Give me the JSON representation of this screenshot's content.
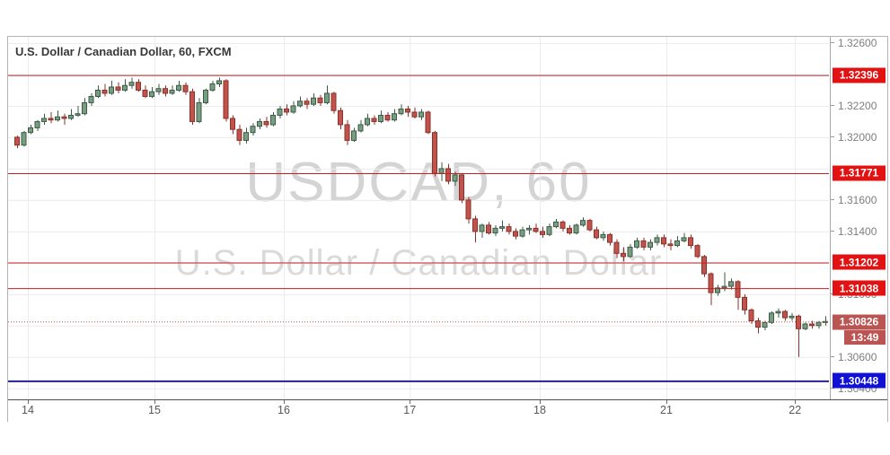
{
  "header": {
    "title": "U.S. Dollar / Canadian Dollar, 60, FXCM"
  },
  "watermark": {
    "line1": "USDCAD, 60",
    "line2": "U.S. Dollar / Canadian Dollar"
  },
  "colors": {
    "up_fill": "#789e82",
    "up_stroke": "#3c5a46",
    "down_fill": "#c0544d",
    "down_stroke": "#8c302a",
    "grid": "#ececec",
    "level_line_red": "#c41e1e",
    "level_badge_red": "#e21212",
    "last_line": "#bb5553",
    "last_badge": "#bb5553",
    "support_line_blue": "#23238c",
    "support_badge_blue": "#1111d6",
    "axis_text": "#7e7e7e",
    "time_text": "#585858"
  },
  "chart_data": {
    "type": "candlestick",
    "title": "U.S. Dollar / Canadian Dollar, 60, FXCM",
    "symbol": "USDCAD",
    "interval": "60",
    "feed": "FXCM",
    "legend_position": "top-left",
    "grid": true,
    "price_axis": {
      "range_top": 1.3264,
      "range_bottom": 1.3033,
      "grid_step": 0.002,
      "grid_prices": [
        1.326,
        1.324,
        1.322,
        1.32,
        1.318,
        1.316,
        1.314,
        1.312,
        1.31,
        1.308,
        1.306,
        1.304
      ],
      "visible_labels": [
        "1.32600",
        "1.32200",
        "1.32000",
        "1.31600",
        "1.31400",
        "1.31000",
        "1.30600",
        "1.30400"
      ],
      "visible_label_values": [
        1.326,
        1.322,
        1.32,
        1.316,
        1.314,
        1.31,
        1.306,
        1.304
      ]
    },
    "time_axis": {
      "ticks": [
        {
          "label": "14",
          "index": 1.6
        },
        {
          "label": "15",
          "index": 20.4
        },
        {
          "label": "16",
          "index": 39.6
        },
        {
          "label": "17",
          "index": 58.3
        },
        {
          "label": "18",
          "index": 77.6
        },
        {
          "label": "21",
          "index": 96.4
        },
        {
          "label": "22",
          "index": 115.5
        }
      ]
    },
    "levels": [
      {
        "value": 1.32396,
        "label": "1.32396",
        "style": "solid-red"
      },
      {
        "value": 1.31771,
        "label": "1.31771",
        "style": "solid-red"
      },
      {
        "value": 1.31202,
        "label": "1.31202",
        "style": "solid-red"
      },
      {
        "value": 1.31038,
        "label": "1.31038",
        "style": "solid-red"
      },
      {
        "value": 1.30448,
        "label": "1.30448",
        "style": "solid-blue"
      }
    ],
    "last_trade": {
      "value": 1.30826,
      "label": "1.30826",
      "countdown": "13:49",
      "direction": "down"
    },
    "candles_ohlc": [
      [
        1.32,
        1.3201,
        1.3193,
        1.3195
      ],
      [
        1.3195,
        1.3204,
        1.3194,
        1.3203
      ],
      [
        1.3203,
        1.3208,
        1.3202,
        1.3206
      ],
      [
        1.3206,
        1.3211,
        1.3204,
        1.321
      ],
      [
        1.321,
        1.3215,
        1.3208,
        1.3212
      ],
      [
        1.3212,
        1.3216,
        1.3209,
        1.3211
      ],
      [
        1.3211,
        1.3217,
        1.321,
        1.3213
      ],
      [
        1.3213,
        1.3215,
        1.3208,
        1.3212
      ],
      [
        1.3212,
        1.3218,
        1.3211,
        1.3214
      ],
      [
        1.3214,
        1.322,
        1.3213,
        1.3215
      ],
      [
        1.3215,
        1.3225,
        1.3214,
        1.3222
      ],
      [
        1.3222,
        1.3228,
        1.322,
        1.3226
      ],
      [
        1.3226,
        1.3233,
        1.3225,
        1.323
      ],
      [
        1.323,
        1.3234,
        1.3226,
        1.3228
      ],
      [
        1.3228,
        1.3236,
        1.3227,
        1.3232
      ],
      [
        1.3232,
        1.3235,
        1.3228,
        1.323
      ],
      [
        1.323,
        1.3237,
        1.3229,
        1.3233
      ],
      [
        1.3233,
        1.3238,
        1.3231,
        1.3235
      ],
      [
        1.3235,
        1.3237,
        1.3229,
        1.323
      ],
      [
        1.323,
        1.3233,
        1.3225,
        1.3226
      ],
      [
        1.3226,
        1.3232,
        1.3225,
        1.3229
      ],
      [
        1.3229,
        1.3234,
        1.3227,
        1.3231
      ],
      [
        1.3231,
        1.3233,
        1.3226,
        1.3228
      ],
      [
        1.3228,
        1.3233,
        1.3227,
        1.323
      ],
      [
        1.323,
        1.3236,
        1.3229,
        1.3233
      ],
      [
        1.3233,
        1.3235,
        1.3227,
        1.3229
      ],
      [
        1.3229,
        1.3231,
        1.3208,
        1.321
      ],
      [
        1.321,
        1.3225,
        1.3209,
        1.3222
      ],
      [
        1.3222,
        1.3231,
        1.3221,
        1.323
      ],
      [
        1.323,
        1.3236,
        1.3229,
        1.3234
      ],
      [
        1.3234,
        1.3238,
        1.3232,
        1.3236
      ],
      [
        1.3236,
        1.3237,
        1.321,
        1.3212
      ],
      [
        1.3212,
        1.3214,
        1.3202,
        1.3205
      ],
      [
        1.3205,
        1.3208,
        1.3195,
        1.3198
      ],
      [
        1.3198,
        1.3206,
        1.3196,
        1.3203
      ],
      [
        1.3203,
        1.3209,
        1.3201,
        1.3207
      ],
      [
        1.3207,
        1.3212,
        1.3205,
        1.321
      ],
      [
        1.321,
        1.3213,
        1.3206,
        1.3208
      ],
      [
        1.3208,
        1.3216,
        1.3207,
        1.3214
      ],
      [
        1.3214,
        1.322,
        1.3212,
        1.3218
      ],
      [
        1.3218,
        1.3221,
        1.3214,
        1.3216
      ],
      [
        1.3216,
        1.3223,
        1.3215,
        1.322
      ],
      [
        1.322,
        1.3226,
        1.3219,
        1.3223
      ],
      [
        1.3223,
        1.3225,
        1.3218,
        1.3221
      ],
      [
        1.3221,
        1.3228,
        1.322,
        1.3225
      ],
      [
        1.3225,
        1.3227,
        1.322,
        1.3222
      ],
      [
        1.3222,
        1.3233,
        1.3221,
        1.3228
      ],
      [
        1.3228,
        1.3229,
        1.3215,
        1.3217
      ],
      [
        1.3217,
        1.3219,
        1.3205,
        1.3208
      ],
      [
        1.3208,
        1.3211,
        1.3195,
        1.3198
      ],
      [
        1.3198,
        1.3206,
        1.3197,
        1.3204
      ],
      [
        1.3204,
        1.3211,
        1.3203,
        1.3208
      ],
      [
        1.3208,
        1.3215,
        1.3207,
        1.3212
      ],
      [
        1.3212,
        1.3214,
        1.3208,
        1.321
      ],
      [
        1.321,
        1.3217,
        1.3209,
        1.3214
      ],
      [
        1.3214,
        1.3216,
        1.321,
        1.3211
      ],
      [
        1.3211,
        1.3218,
        1.321,
        1.3215
      ],
      [
        1.3215,
        1.3221,
        1.3214,
        1.3218
      ],
      [
        1.3218,
        1.322,
        1.3213,
        1.3216
      ],
      [
        1.3216,
        1.3219,
        1.3212,
        1.3213
      ],
      [
        1.3213,
        1.3218,
        1.3211,
        1.3216
      ],
      [
        1.3216,
        1.3217,
        1.3202,
        1.3203
      ],
      [
        1.3203,
        1.3204,
        1.3175,
        1.3177
      ],
      [
        1.3177,
        1.3184,
        1.3172,
        1.318
      ],
      [
        1.318,
        1.3183,
        1.317,
        1.3172
      ],
      [
        1.3172,
        1.3178,
        1.3169,
        1.3176
      ],
      [
        1.3176,
        1.3177,
        1.3158,
        1.316
      ],
      [
        1.316,
        1.3162,
        1.3145,
        1.3148
      ],
      [
        1.3148,
        1.315,
        1.3133,
        1.314
      ],
      [
        1.314,
        1.3145,
        1.3136,
        1.3144
      ],
      [
        1.3144,
        1.3146,
        1.3138,
        1.3139
      ],
      [
        1.3139,
        1.3144,
        1.3137,
        1.3142
      ],
      [
        1.3142,
        1.3147,
        1.314,
        1.3143
      ],
      [
        1.3143,
        1.3145,
        1.3138,
        1.314
      ],
      [
        1.314,
        1.3142,
        1.3135,
        1.3137
      ],
      [
        1.3137,
        1.3143,
        1.3136,
        1.3141
      ],
      [
        1.3141,
        1.3144,
        1.3138,
        1.3142
      ],
      [
        1.3142,
        1.3145,
        1.3139,
        1.314
      ],
      [
        1.314,
        1.3143,
        1.3136,
        1.3138
      ],
      [
        1.3138,
        1.3145,
        1.3137,
        1.3143
      ],
      [
        1.3143,
        1.3148,
        1.3142,
        1.3146
      ],
      [
        1.3146,
        1.3147,
        1.314,
        1.3142
      ],
      [
        1.3142,
        1.3144,
        1.3138,
        1.3139
      ],
      [
        1.3139,
        1.3145,
        1.3138,
        1.3144
      ],
      [
        1.3144,
        1.3149,
        1.3143,
        1.3147
      ],
      [
        1.3147,
        1.3148,
        1.314,
        1.3141
      ],
      [
        1.3141,
        1.3143,
        1.3135,
        1.3136
      ],
      [
        1.3136,
        1.314,
        1.3134,
        1.3138
      ],
      [
        1.3138,
        1.3139,
        1.3131,
        1.3133
      ],
      [
        1.3133,
        1.3135,
        1.3123,
        1.3126
      ],
      [
        1.3126,
        1.313,
        1.3121,
        1.3124
      ],
      [
        1.3124,
        1.3132,
        1.3123,
        1.313
      ],
      [
        1.313,
        1.3136,
        1.3129,
        1.3134
      ],
      [
        1.3134,
        1.3136,
        1.3128,
        1.313
      ],
      [
        1.313,
        1.3135,
        1.3128,
        1.3133
      ],
      [
        1.3133,
        1.3138,
        1.3131,
        1.3136
      ],
      [
        1.3136,
        1.3138,
        1.313,
        1.3132
      ],
      [
        1.3132,
        1.3135,
        1.3128,
        1.3131
      ],
      [
        1.3131,
        1.3137,
        1.313,
        1.3134
      ],
      [
        1.3134,
        1.3139,
        1.3133,
        1.3136
      ],
      [
        1.3136,
        1.3138,
        1.3129,
        1.3131
      ],
      [
        1.3131,
        1.3132,
        1.3123,
        1.3124
      ],
      [
        1.3124,
        1.3125,
        1.3111,
        1.3113
      ],
      [
        1.3113,
        1.3114,
        1.3093,
        1.3101
      ],
      [
        1.3101,
        1.3106,
        1.3099,
        1.3104
      ],
      [
        1.3104,
        1.3114,
        1.3102,
        1.3105
      ],
      [
        1.3105,
        1.311,
        1.3103,
        1.3108
      ],
      [
        1.3108,
        1.3109,
        1.309,
        1.3098
      ],
      [
        1.3098,
        1.31,
        1.3087,
        1.309
      ],
      [
        1.309,
        1.3091,
        1.3081,
        1.3083
      ],
      [
        1.3083,
        1.3085,
        1.3075,
        1.3079
      ],
      [
        1.3079,
        1.3083,
        1.3077,
        1.3082
      ],
      [
        1.3082,
        1.3089,
        1.3081,
        1.3088
      ],
      [
        1.3088,
        1.3091,
        1.3085,
        1.3089
      ],
      [
        1.3089,
        1.309,
        1.3083,
        1.3085
      ],
      [
        1.3085,
        1.3088,
        1.3083,
        1.3086
      ],
      [
        1.3086,
        1.3087,
        1.306,
        1.3078
      ],
      [
        1.3078,
        1.3082,
        1.3077,
        1.3081
      ],
      [
        1.3081,
        1.3083,
        1.3078,
        1.308
      ],
      [
        1.308,
        1.3083,
        1.3078,
        1.3082
      ],
      [
        1.3082,
        1.3086,
        1.308,
        1.30826
      ]
    ]
  }
}
